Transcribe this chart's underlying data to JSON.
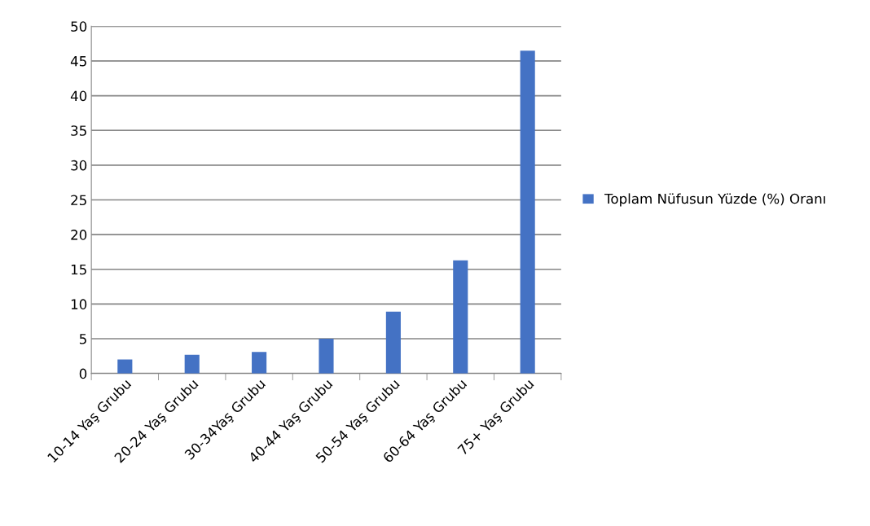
{
  "chart_data": {
    "type": "bar",
    "categories": [
      "10-14 Yaş Grubu",
      "20-24 Yaş Grubu",
      "30-34Yaş Grubu",
      "40-44 Yaş Grubu",
      "50-54 Yaş Grubu",
      "60-64 Yaş Grubu",
      "75+ Yaş Grubu"
    ],
    "series": [
      {
        "name": "Toplam Nüfusun Yüzde (%) Oranı",
        "color": "#4472c4",
        "values": [
          2.0,
          2.7,
          3.1,
          5.0,
          8.9,
          16.3,
          46.5
        ]
      }
    ],
    "ylim": [
      0,
      50
    ],
    "yticks": [
      0,
      5,
      10,
      15,
      20,
      25,
      30,
      35,
      40,
      45,
      50
    ],
    "grid": "y",
    "legend": "right"
  }
}
